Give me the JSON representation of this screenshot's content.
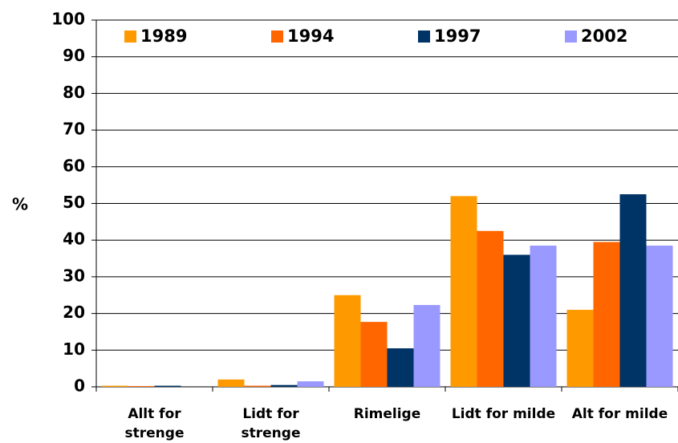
{
  "chart_data": {
    "type": "bar",
    "y_label": "%",
    "categories": [
      "Allt for strenge",
      "Lidt for strenge",
      "Rimelige",
      "Lidt for milde",
      "Alt for milde"
    ],
    "series": [
      {
        "name": "1989",
        "color": "#ff9900",
        "values": [
          0.3,
          2,
          25,
          52,
          21
        ]
      },
      {
        "name": "1994",
        "color": "#ff6600",
        "values": [
          0.2,
          0.3,
          17.7,
          42.5,
          39.5
        ]
      },
      {
        "name": "1997",
        "color": "#003366",
        "values": [
          0.3,
          0.5,
          10.5,
          36,
          52.5
        ]
      },
      {
        "name": "2002",
        "color": "#9999ff",
        "values": [
          0,
          1.5,
          22.3,
          38.5,
          38.5
        ]
      }
    ],
    "ylim": [
      0,
      100
    ],
    "yticks": [
      0,
      10,
      20,
      30,
      40,
      50,
      60,
      70,
      80,
      90,
      100
    ],
    "grid": true,
    "legend": "top"
  }
}
